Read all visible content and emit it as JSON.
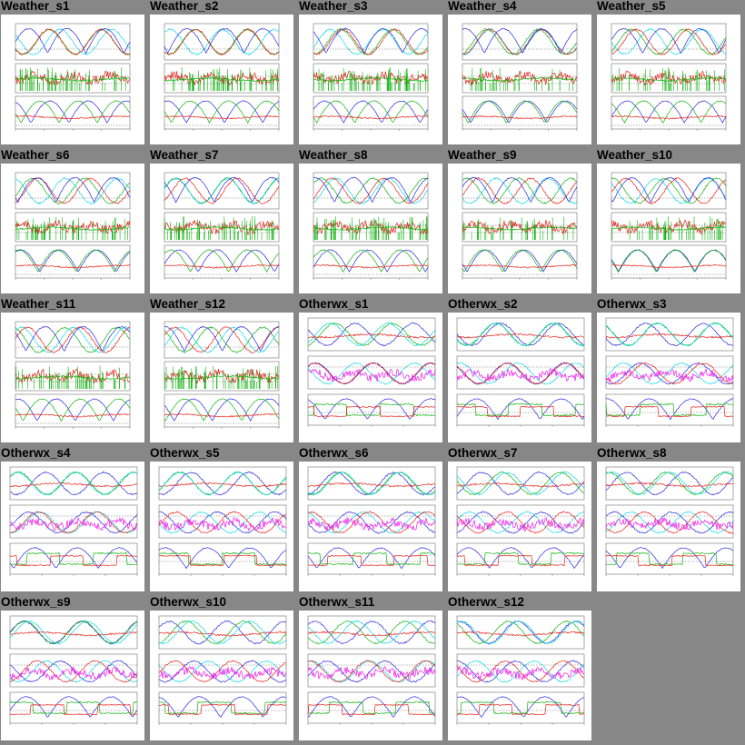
{
  "chart_data": {
    "type": "line",
    "tiles": [
      {
        "title": "Weather_s1",
        "style": "weather"
      },
      {
        "title": "Weather_s2",
        "style": "weather"
      },
      {
        "title": "Weather_s3",
        "style": "weather"
      },
      {
        "title": "Weather_s4",
        "style": "weather"
      },
      {
        "title": "Weather_s5",
        "style": "weather"
      },
      {
        "title": "Weather_s6",
        "style": "weather"
      },
      {
        "title": "Weather_s7",
        "style": "weather"
      },
      {
        "title": "Weather_s8",
        "style": "weather"
      },
      {
        "title": "Weather_s9",
        "style": "weather"
      },
      {
        "title": "Weather_s10",
        "style": "weather"
      },
      {
        "title": "Weather_s11",
        "style": "weather"
      },
      {
        "title": "Weather_s12",
        "style": "weather"
      },
      {
        "title": "Otherwx_s1",
        "style": "otherwx"
      },
      {
        "title": "Otherwx_s2",
        "style": "otherwx"
      },
      {
        "title": "Otherwx_s3",
        "style": "otherwx"
      },
      {
        "title": "Otherwx_s4",
        "style": "otherwx"
      },
      {
        "title": "Otherwx_s5",
        "style": "otherwx"
      },
      {
        "title": "Otherwx_s6",
        "style": "otherwx"
      },
      {
        "title": "Otherwx_s7",
        "style": "otherwx"
      },
      {
        "title": "Otherwx_s8",
        "style": "otherwx"
      },
      {
        "title": "Otherwx_s9",
        "style": "otherwx"
      },
      {
        "title": "Otherwx_s10",
        "style": "otherwx"
      },
      {
        "title": "Otherwx_s11",
        "style": "otherwx"
      },
      {
        "title": "Otherwx_s12",
        "style": "otherwx"
      }
    ],
    "colors": {
      "background": "#878787",
      "panel": "#ffffff",
      "red": "#e8241c",
      "green": "#12b312",
      "blue": "#2a2adf",
      "cyan": "#14d7e6",
      "magenta": "#ec1ae6",
      "axis": "#555555"
    }
  }
}
